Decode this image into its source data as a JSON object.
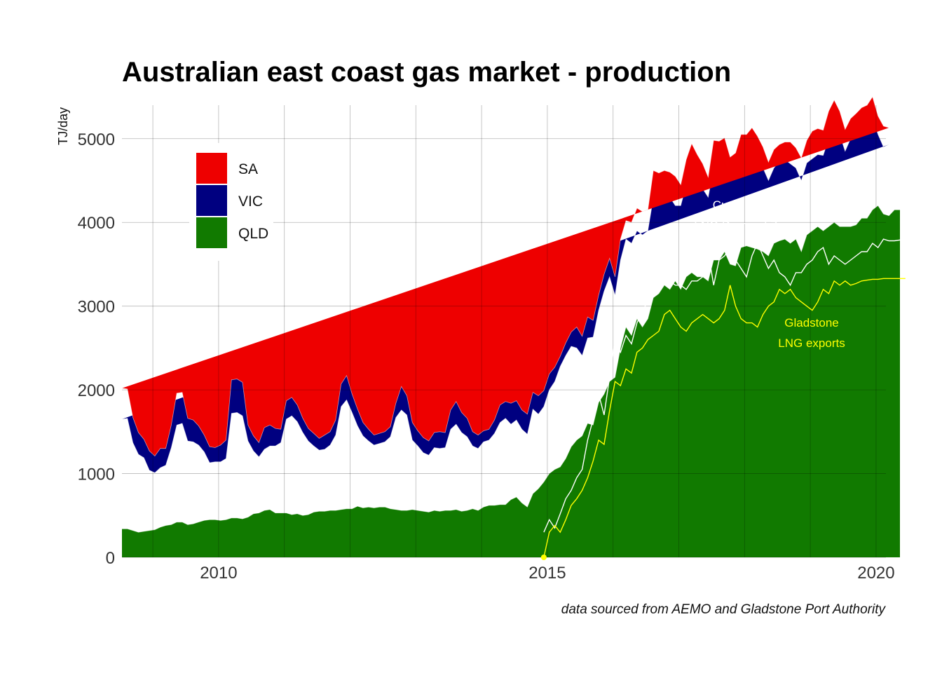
{
  "chart_data": {
    "type": "area",
    "stacked": true,
    "title": "Australian east coast gas market - production",
    "xlabel": "",
    "ylabel": "TJ/day",
    "xlim": [
      2008.53,
      2020.15
    ],
    "ylim": [
      0,
      5400
    ],
    "x_ticks": [
      {
        "value": 2010,
        "label": "2010"
      },
      {
        "value": 2015,
        "label": "2015"
      },
      {
        "value": 2020,
        "label": "2020"
      }
    ],
    "y_ticks": [
      {
        "value": 0,
        "label": "0"
      },
      {
        "value": 1000,
        "label": "1000"
      },
      {
        "value": 2000,
        "label": "2000"
      },
      {
        "value": 3000,
        "label": "3000"
      },
      {
        "value": 4000,
        "label": "4000"
      },
      {
        "value": 5000,
        "label": "5000"
      }
    ],
    "grid": true,
    "legend_position": "top-left",
    "legend": [
      {
        "name": "SA",
        "color": "#ee0000"
      },
      {
        "name": "VIC",
        "color": "#000080"
      },
      {
        "name": "QLD",
        "color": "#117a00"
      }
    ],
    "x_start": 2008.53,
    "x_step_years": 0.08333,
    "series": [
      {
        "name": "QLD",
        "color": "#117a00",
        "values": [
          340,
          340,
          320,
          300,
          310,
          320,
          330,
          360,
          380,
          390,
          420,
          420,
          390,
          400,
          420,
          440,
          450,
          450,
          440,
          450,
          470,
          470,
          460,
          480,
          520,
          530,
          560,
          570,
          530,
          530,
          530,
          510,
          520,
          500,
          510,
          540,
          550,
          550,
          560,
          560,
          570,
          580,
          580,
          610,
          590,
          600,
          590,
          600,
          600,
          580,
          570,
          560,
          560,
          570,
          560,
          550,
          540,
          560,
          550,
          560,
          560,
          570,
          550,
          560,
          580,
          560,
          600,
          620,
          620,
          630,
          630,
          690,
          720,
          650,
          600,
          760,
          820,
          900,
          1000,
          1050,
          1080,
          1180,
          1320,
          1400,
          1450,
          1600,
          1580,
          1850,
          1950,
          2100,
          2150,
          2500,
          2750,
          2650,
          2850,
          2750,
          2850,
          3100,
          3150,
          3250,
          3200,
          3300,
          3200,
          3350,
          3400,
          3350,
          3350,
          3300,
          3550,
          3550,
          3650,
          3500,
          3480,
          3700,
          3720,
          3700,
          3680,
          3650,
          3600,
          3750,
          3780,
          3800,
          3750,
          3800,
          3650,
          3850,
          3900,
          3950,
          3900,
          3950,
          4000,
          3950,
          3950,
          3950,
          3970,
          4050,
          4050,
          4150,
          4200,
          4100,
          4080,
          4150,
          4150
        ]
      },
      {
        "name": "VIC",
        "color": "#000080",
        "values": [
          1310,
          1320,
          1050,
          930,
          880,
          720,
          680,
          710,
          720,
          920,
          1160,
          1180,
          1000,
          980,
          920,
          820,
          680,
          690,
          700,
          730,
          1250,
          1260,
          1230,
          910,
          750,
          670,
          730,
          760,
          800,
          840,
          1120,
          1180,
          1100,
          990,
          880,
          790,
          730,
          740,
          780,
          900,
          1230,
          1300,
          1150,
          960,
          860,
          790,
          750,
          760,
          780,
          860,
          1100,
          1200,
          1140,
          830,
          770,
          700,
          680,
          750,
          750,
          750,
          970,
          1020,
          940,
          880,
          750,
          740,
          780,
          780,
          860,
          980,
          1030,
          900,
          920,
          880,
          870,
          1010,
          890,
          900,
          1000,
          1050,
          1200,
          1230,
          1200,
          1100,
          960,
          1020,
          1050,
          1100,
          1230,
          1250,
          980,
          1050,
          1050,
          1100,
          1050,
          1100,
          1050,
          1200,
          1100,
          1050,
          1100,
          900,
          1000,
          1100,
          1200,
          1150,
          1050,
          1000,
          1100,
          1100,
          1100,
          1000,
          1100,
          1050,
          1080,
          1100,
          1100,
          1000,
          900,
          900,
          950,
          950,
          950,
          850,
          850,
          860,
          860,
          860,
          900,
          1050,
          1200,
          1100,
          900,
          1050,
          1100,
          1100,
          1100,
          1100,
          850,
          800,
          850
        ]
      },
      {
        "name": "SA",
        "color": "#ee0000",
        "values": [
          370,
          350,
          300,
          260,
          220,
          230,
          200,
          230,
          200,
          270,
          380,
          370,
          270,
          260,
          230,
          200,
          190,
          170,
          200,
          220,
          400,
          400,
          400,
          190,
          180,
          170,
          260,
          250,
          210,
          160,
          220,
          220,
          200,
          170,
          150,
          150,
          140,
          170,
          160,
          180,
          270,
          290,
          220,
          200,
          160,
          140,
          120,
          120,
          120,
          120,
          170,
          280,
          230,
          210,
          180,
          180,
          170,
          180,
          200,
          180,
          230,
          270,
          240,
          220,
          170,
          160,
          130,
          130,
          160,
          210,
          200,
          250,
          230,
          230,
          240,
          200,
          220,
          190,
          190,
          170,
          120,
          150,
          170,
          250,
          230,
          250,
          200,
          180,
          200,
          220,
          220,
          250,
          220,
          250,
          270,
          280,
          250,
          320,
          340,
          320,
          300,
          350,
          250,
          300,
          340,
          310,
          300,
          240,
          330,
          320,
          260,
          280,
          250,
          300,
          250,
          330,
          250,
          250,
          220,
          220,
          200,
          210,
          260,
          240,
          270,
          270,
          330,
          310,
          300,
          330,
          260,
          280,
          260,
          240,
          230,
          220,
          250,
          250,
          220,
          250,
          200,
          200,
          250
        ]
      }
    ],
    "lines": [
      {
        "name": "Curtis Island LNG Demand Zone",
        "color": "#ffffff",
        "start_index": 77,
        "values": [
          300,
          450,
          350,
          520,
          700,
          800,
          950,
          1050,
          1400,
          1650,
          1950,
          1700,
          2150,
          2600,
          2450,
          2650,
          2550,
          2800,
          2950,
          3050,
          3150,
          3250,
          3350,
          3300,
          3250,
          3250,
          3200,
          3300,
          3300,
          3350,
          3650,
          3250,
          3550,
          3600,
          3700,
          3550,
          3450,
          3350,
          3600,
          3750,
          3600,
          3450,
          3550,
          3400,
          3350,
          3250,
          3400,
          3400,
          3500,
          3550,
          3650,
          3700,
          3500,
          3600,
          3550,
          3500,
          3550,
          3600,
          3650,
          3650,
          3750,
          3700,
          3800,
          3780,
          3780,
          3790,
          3800
        ]
      },
      {
        "name": "Gladstone LNG exports",
        "color": "#ffff00",
        "start_index": 77,
        "values": [
          0,
          300,
          380,
          300,
          450,
          620,
          700,
          800,
          950,
          1150,
          1400,
          1350,
          1750,
          2100,
          2050,
          2250,
          2200,
          2450,
          2500,
          2600,
          2650,
          2700,
          2900,
          2950,
          2850,
          2750,
          2700,
          2800,
          2850,
          2900,
          2850,
          2800,
          2850,
          2950,
          3250,
          3000,
          2850,
          2800,
          2800,
          2750,
          2900,
          3000,
          3050,
          3200,
          3150,
          3200,
          3100,
          3050,
          3000,
          2950,
          3050,
          3200,
          3150,
          3300,
          3250,
          3300,
          3250,
          3270,
          3300,
          3310,
          3320,
          3320,
          3330,
          3330,
          3330,
          3330,
          3330
        ]
      }
    ],
    "annotations": [
      {
        "lines": [
          "Curtis Island",
          "LNG Demand Zone"
        ],
        "color": "#ffffff"
      },
      {
        "lines": [
          "Gladstone",
          "LNG exports"
        ],
        "color": "#ffff00"
      }
    ],
    "caption": "data sourced from AEMO and Gladstone Port Authority"
  }
}
